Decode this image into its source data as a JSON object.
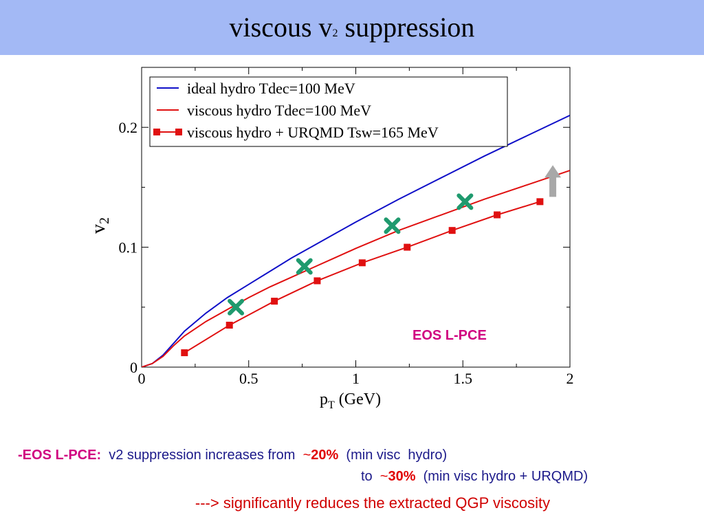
{
  "slide": {
    "title_main": "viscous v",
    "title_sub": "2",
    "title_rest": " suppression"
  },
  "chart_data": {
    "type": "line",
    "xlabel": "p",
    "xlabel_sub": "T",
    "xlabel_unit": " (GeV)",
    "ylabel": "v",
    "ylabel_sub": "2",
    "xlim": [
      0,
      2
    ],
    "ylim": [
      0,
      0.25
    ],
    "xticks": [
      0,
      0.5,
      1,
      1.5,
      2
    ],
    "xtick_labels": [
      "0",
      "0.5",
      "1",
      "1.5",
      "2"
    ],
    "yticks": [
      0,
      0.1,
      0.2
    ],
    "ytick_labels": [
      "0",
      "0.1",
      "0.2"
    ],
    "legend_position": "top-left",
    "annotation": "EOS L-PCE",
    "series": [
      {
        "name": "ideal hydro Tdec=100 MeV",
        "color": "#1010c8",
        "style": "line",
        "x": [
          0,
          0.05,
          0.1,
          0.15,
          0.2,
          0.3,
          0.4,
          0.5,
          0.6,
          0.7,
          0.8,
          0.9,
          1.0,
          1.2,
          1.4,
          1.6,
          1.8,
          2.0
        ],
        "y": [
          0,
          0.003,
          0.01,
          0.02,
          0.03,
          0.045,
          0.058,
          0.069,
          0.08,
          0.091,
          0.101,
          0.111,
          0.121,
          0.14,
          0.158,
          0.176,
          0.193,
          0.21
        ]
      },
      {
        "name": "viscous hydro Tdec=100 MeV",
        "color": "#e01010",
        "style": "line",
        "x": [
          0,
          0.05,
          0.1,
          0.15,
          0.2,
          0.3,
          0.4,
          0.5,
          0.6,
          0.7,
          0.8,
          0.9,
          1.0,
          1.2,
          1.4,
          1.6,
          1.8,
          2.0
        ],
        "y": [
          0,
          0.003,
          0.009,
          0.018,
          0.026,
          0.038,
          0.048,
          0.058,
          0.067,
          0.075,
          0.083,
          0.091,
          0.099,
          0.114,
          0.127,
          0.14,
          0.152,
          0.164
        ]
      },
      {
        "name": "viscous hydro + URQMD Tsw=165 MeV",
        "color": "#e01010",
        "style": "line-marker",
        "x": [
          0.2,
          0.41,
          0.62,
          0.82,
          1.03,
          1.24,
          1.45,
          1.66,
          1.86
        ],
        "y": [
          0.012,
          0.035,
          0.055,
          0.072,
          0.087,
          0.1,
          0.114,
          0.127,
          0.138
        ]
      },
      {
        "style": "cross",
        "color": "#1f9a6e",
        "x": [
          0.44,
          0.76,
          1.17,
          1.51
        ],
        "y": [
          0.05,
          0.084,
          0.118,
          0.138
        ]
      }
    ],
    "shift_arrow": {
      "x": 1.92,
      "from_y": 0.142,
      "to_y": 0.165,
      "color": "#a8a8a8"
    }
  },
  "notes": {
    "dash": "-",
    "eos_label": "EOS L-PCE:",
    "line1_text": "  v2 suppression increases from  ",
    "tilde1": "~",
    "pct1": "20%",
    "line1_tail": "  (min visc  hydro)",
    "line2_to": "to  ",
    "tilde2": "~",
    "pct2": "30%",
    "line2_tail": "  (min visc hydro + URQMD)",
    "conclusion": "---> significantly reduces the extracted QGP viscosity"
  }
}
